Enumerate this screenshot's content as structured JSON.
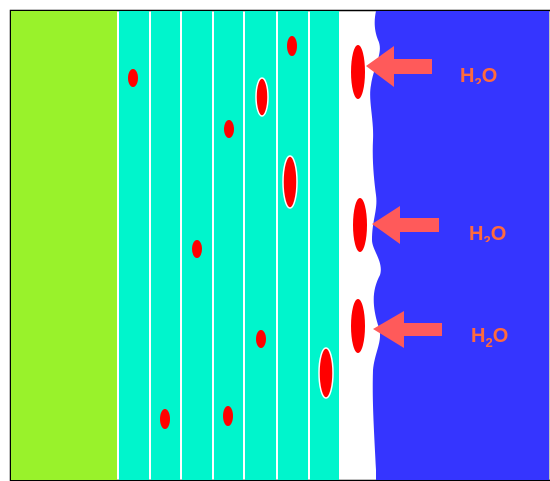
{
  "colors": {
    "substrate": "#99f22b",
    "layers": "#00f5cc",
    "layer_gap": "#ffffff",
    "water": "#3535ff",
    "droplet": "#ff0000",
    "arrow": "#ff5a5a",
    "label": "#ff6a3d",
    "frame": "#000000"
  },
  "labels": {
    "water_1": {
      "main": "H",
      "sub": "2",
      "tail": "O"
    },
    "water_2": {
      "main": "H",
      "sub": "2",
      "tail": "O"
    },
    "water_3": {
      "main": "H",
      "sub": "2",
      "tail": "O"
    }
  }
}
